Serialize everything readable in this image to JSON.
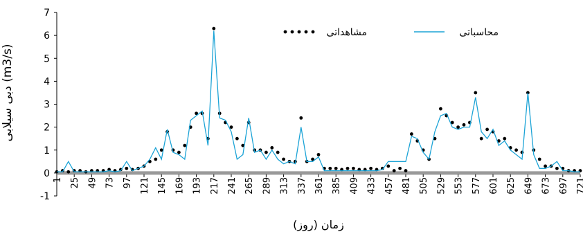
{
  "chart_data": {
    "type": "line",
    "y_label": "دبی سیلابی (m3/s)",
    "x_label": "زمان (روز)",
    "x": [
      1,
      9,
      17,
      25,
      33,
      41,
      49,
      57,
      65,
      73,
      81,
      89,
      97,
      105,
      113,
      121,
      129,
      137,
      145,
      153,
      161,
      169,
      177,
      185,
      193,
      201,
      209,
      217,
      225,
      233,
      241,
      249,
      257,
      265,
      273,
      281,
      289,
      297,
      305,
      313,
      321,
      329,
      337,
      345,
      353,
      361,
      369,
      377,
      385,
      393,
      401,
      409,
      417,
      425,
      433,
      441,
      449,
      457,
      465,
      473,
      481,
      489,
      497,
      505,
      513,
      521,
      529,
      537,
      545,
      553,
      561,
      569,
      577,
      585,
      593,
      601,
      609,
      617,
      625,
      633,
      641,
      649,
      657,
      665,
      673,
      681,
      689,
      697,
      705,
      713,
      721
    ],
    "series": [
      {
        "name": "مشاهداتی",
        "color": "#000000",
        "style": "dots",
        "values": [
          0.05,
          0.1,
          0.05,
          0.1,
          0.1,
          0.05,
          0.1,
          0.1,
          0.1,
          0.15,
          0.1,
          0.15,
          0.2,
          0.15,
          0.2,
          0.3,
          0.5,
          0.6,
          1.0,
          1.8,
          1.0,
          0.9,
          1.2,
          2.0,
          2.6,
          2.6,
          1.5,
          6.3,
          2.6,
          2.2,
          2.0,
          1.5,
          1.2,
          2.2,
          1.0,
          1.0,
          0.9,
          1.1,
          0.9,
          0.6,
          0.5,
          0.5,
          2.4,
          0.5,
          0.6,
          0.8,
          0.2,
          0.2,
          0.2,
          0.15,
          0.2,
          0.2,
          0.15,
          0.15,
          0.2,
          0.15,
          0.2,
          0.3,
          0.1,
          0.2,
          0.1,
          1.7,
          1.4,
          1.0,
          0.6,
          1.5,
          2.8,
          2.5,
          2.2,
          2.0,
          2.1,
          2.2,
          3.5,
          1.5,
          1.9,
          1.8,
          1.4,
          1.5,
          1.1,
          1.0,
          0.9,
          3.5,
          1.0,
          0.6,
          0.3,
          0.3,
          0.2,
          0.2,
          0.1,
          0.1,
          0.1
        ]
      },
      {
        "name": "محاسباتی",
        "color": "#1ba3d6",
        "style": "line",
        "values": [
          0.05,
          0.05,
          0.5,
          0.05,
          0.05,
          0.05,
          0.05,
          0.05,
          0.05,
          0.1,
          0.05,
          0.1,
          0.5,
          0.1,
          0.2,
          0.3,
          0.6,
          1.1,
          0.6,
          1.9,
          0.9,
          0.8,
          0.6,
          2.3,
          2.5,
          2.7,
          1.2,
          6.2,
          2.4,
          2.3,
          1.8,
          0.6,
          0.8,
          2.4,
          0.9,
          1.0,
          0.6,
          1.0,
          0.6,
          0.4,
          0.5,
          0.4,
          2.0,
          0.5,
          0.5,
          0.7,
          0.1,
          0.1,
          0.1,
          0.1,
          0.1,
          0.1,
          0.1,
          0.1,
          0.1,
          0.1,
          0.15,
          0.5,
          0.5,
          0.5,
          0.5,
          1.6,
          1.5,
          0.9,
          0.6,
          1.8,
          2.5,
          2.6,
          2.0,
          1.9,
          2.0,
          2.0,
          3.3,
          1.8,
          1.5,
          1.9,
          1.2,
          1.4,
          1.0,
          0.8,
          0.6,
          3.5,
          0.8,
          0.2,
          0.2,
          0.3,
          0.5,
          0.1,
          0.1,
          0.05,
          0.05
        ]
      }
    ],
    "xlim": [
      1,
      721
    ],
    "xticks": [
      1,
      25,
      49,
      73,
      97,
      121,
      145,
      169,
      193,
      217,
      241,
      265,
      289,
      313,
      337,
      361,
      385,
      409,
      433,
      457,
      481,
      505,
      529,
      553,
      577,
      601,
      625,
      649,
      673,
      697,
      721
    ],
    "ylim": [
      -1,
      7
    ],
    "yticks": [
      -1,
      0,
      1,
      2,
      3,
      4,
      5,
      6,
      7
    ]
  }
}
